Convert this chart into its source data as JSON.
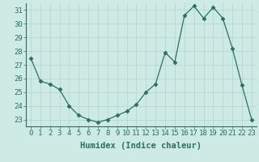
{
  "x": [
    0,
    1,
    2,
    3,
    4,
    5,
    6,
    7,
    8,
    9,
    10,
    11,
    12,
    13,
    14,
    15,
    16,
    17,
    18,
    19,
    20,
    21,
    22,
    23
  ],
  "y": [
    27.5,
    25.8,
    25.6,
    25.2,
    24.0,
    23.3,
    23.0,
    22.8,
    23.0,
    23.3,
    23.6,
    24.1,
    25.0,
    25.6,
    27.9,
    27.2,
    30.6,
    31.3,
    30.4,
    31.2,
    30.4,
    28.2,
    25.5,
    23.0
  ],
  "line_color": "#2d6e63",
  "marker": "D",
  "marker_size": 2.5,
  "bg_color": "#ceeae4",
  "grid_color": "#b8d8d2",
  "xlabel": "Humidex (Indice chaleur)",
  "xlim": [
    -0.5,
    23.5
  ],
  "ylim": [
    22.5,
    31.5
  ],
  "yticks": [
    23,
    24,
    25,
    26,
    27,
    28,
    29,
    30,
    31
  ],
  "xtick_labels": [
    "0",
    "1",
    "2",
    "3",
    "4",
    "5",
    "6",
    "7",
    "8",
    "9",
    "10",
    "11",
    "12",
    "13",
    "14",
    "15",
    "16",
    "17",
    "18",
    "19",
    "20",
    "21",
    "22",
    "23"
  ],
  "xlabel_fontsize": 7.5,
  "tick_fontsize": 6.5
}
